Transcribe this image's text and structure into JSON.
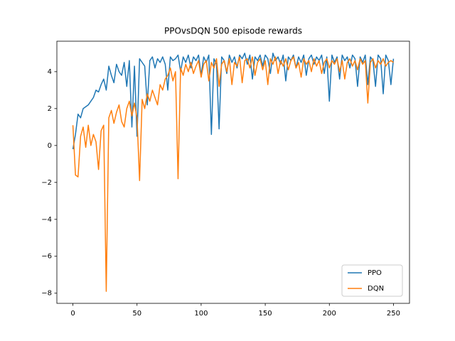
{
  "chart_data": {
    "type": "line",
    "title": "PPOvsDQN 500 episode rewards",
    "x": [
      0,
      2,
      4,
      6,
      8,
      10,
      12,
      14,
      16,
      18,
      20,
      22,
      24,
      26,
      28,
      30,
      32,
      34,
      36,
      38,
      40,
      42,
      44,
      46,
      48,
      50,
      52,
      54,
      56,
      58,
      60,
      62,
      64,
      66,
      68,
      70,
      72,
      74,
      76,
      78,
      80,
      82,
      84,
      86,
      88,
      90,
      92,
      94,
      96,
      98,
      100,
      102,
      104,
      106,
      108,
      110,
      112,
      114,
      116,
      118,
      120,
      122,
      124,
      126,
      128,
      130,
      132,
      134,
      136,
      138,
      140,
      142,
      144,
      146,
      148,
      150,
      152,
      154,
      156,
      158,
      160,
      162,
      164,
      166,
      168,
      170,
      172,
      174,
      176,
      178,
      180,
      182,
      184,
      186,
      188,
      190,
      192,
      194,
      196,
      198,
      200,
      202,
      204,
      206,
      208,
      210,
      212,
      214,
      216,
      218,
      220,
      222,
      224,
      226,
      228,
      230,
      232,
      234,
      236,
      238,
      240,
      242,
      244,
      246,
      248,
      250
    ],
    "series": [
      {
        "name": "PPO",
        "color": "#1f77b4",
        "values": [
          -0.2,
          0.6,
          1.7,
          1.5,
          2.0,
          2.1,
          2.2,
          2.4,
          2.6,
          3.0,
          2.9,
          3.3,
          3.6,
          3.0,
          4.3,
          3.8,
          3.4,
          4.4,
          4.0,
          3.8,
          4.5,
          3.2,
          4.6,
          1.0,
          4.3,
          0.5,
          4.7,
          4.5,
          4.3,
          2.2,
          4.6,
          4.8,
          4.2,
          4.7,
          4.5,
          4.8,
          4.4,
          3.0,
          4.8,
          4.6,
          4.7,
          4.9,
          4.0,
          4.8,
          4.5,
          4.9,
          4.2,
          4.8,
          4.6,
          4.9,
          3.8,
          4.8,
          4.5,
          4.9,
          0.6,
          4.7,
          4.4,
          0.9,
          4.8,
          4.6,
          3.9,
          4.9,
          4.5,
          4.8,
          4.2,
          4.9,
          4.7,
          5.0,
          4.4,
          4.9,
          3.6,
          4.8,
          4.6,
          4.9,
          4.3,
          4.9,
          4.7,
          3.9,
          5.0,
          4.6,
          4.8,
          4.4,
          4.9,
          3.5,
          4.8,
          4.6,
          4.9,
          4.2,
          4.8,
          4.5,
          4.9,
          3.8,
          4.7,
          4.9,
          4.4,
          4.8,
          4.6,
          4.9,
          3.9,
          4.8,
          2.4,
          4.9,
          4.5,
          4.8,
          3.6,
          4.9,
          4.6,
          4.8,
          4.2,
          4.9,
          4.7,
          3.2,
          4.8,
          4.5,
          4.9,
          3.3,
          4.8,
          4.6,
          3.2,
          4.9,
          4.7,
          2.8,
          4.9,
          4.6,
          3.3,
          4.7
        ]
      },
      {
        "name": "DQN",
        "color": "#ff7f0e",
        "values": [
          1.1,
          -1.6,
          -1.7,
          0.5,
          1.0,
          -0.1,
          1.1,
          0.0,
          0.6,
          0.2,
          -1.3,
          0.8,
          1.1,
          -7.9,
          1.5,
          1.9,
          1.2,
          1.8,
          2.2,
          1.3,
          1.0,
          2.0,
          2.4,
          1.6,
          2.3,
          1.5,
          -1.9,
          2.5,
          2.0,
          2.8,
          2.4,
          3.0,
          2.6,
          2.2,
          3.3,
          3.0,
          3.6,
          3.8,
          4.2,
          3.5,
          4.0,
          -1.8,
          4.2,
          3.8,
          4.4,
          4.0,
          4.5,
          3.9,
          4.3,
          4.6,
          3.7,
          4.4,
          4.6,
          3.5,
          4.5,
          4.2,
          4.7,
          3.2,
          4.4,
          4.6,
          4.0,
          4.7,
          3.3,
          4.5,
          4.3,
          4.8,
          3.4,
          4.6,
          4.7,
          4.2,
          4.8,
          3.8,
          4.5,
          4.7,
          4.1,
          4.6,
          3.3,
          4.7,
          4.4,
          4.8,
          3.9,
          4.6,
          4.3,
          4.7,
          4.1,
          4.6,
          4.8,
          4.2,
          4.5,
          3.7,
          4.7,
          4.4,
          4.6,
          4.0,
          4.7,
          4.3,
          4.6,
          3.9,
          4.5,
          4.7,
          4.2,
          4.6,
          4.4,
          4.7,
          4.0,
          4.6,
          3.6,
          4.5,
          4.7,
          4.3,
          4.6,
          4.1,
          4.7,
          4.4,
          4.6,
          2.3,
          4.5,
          4.7,
          4.2,
          4.6,
          4.4,
          4.7,
          4.3,
          4.5,
          4.6,
          4.5
        ]
      }
    ],
    "xlim": [
      -12.5,
      262.5
    ],
    "xticks": [
      0,
      50,
      100,
      150,
      200,
      250
    ],
    "ylim": [
      -8.55,
      5.65
    ],
    "yticks": [
      {
        "value": -8,
        "label": "−8"
      },
      {
        "value": -6,
        "label": "−6"
      },
      {
        "value": -4,
        "label": "−4"
      },
      {
        "value": -2,
        "label": "−2"
      },
      0,
      2,
      4
    ],
    "legend": "lower right"
  }
}
